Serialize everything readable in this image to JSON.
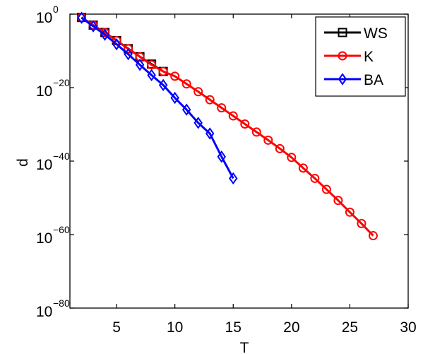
{
  "chart_data": {
    "type": "line",
    "xlabel": "T",
    "ylabel": "d",
    "xlim": [
      1,
      30
    ],
    "ylim_log10": [
      -80,
      0
    ],
    "yscale": "log",
    "xticks": [
      5,
      10,
      15,
      20,
      25,
      30
    ],
    "yticks": [
      {
        "base": "10",
        "exp": "0",
        "log10": 0
      },
      {
        "base": "10",
        "exp": "−20",
        "log10": -20
      },
      {
        "base": "10",
        "exp": "−40",
        "log10": -40
      },
      {
        "base": "10",
        "exp": "−60",
        "log10": -60
      },
      {
        "base": "10",
        "exp": "−80",
        "log10": -80
      }
    ],
    "legend_position": "top-right",
    "grid": false,
    "series": [
      {
        "name": "WS",
        "color": "#000000",
        "marker": "square",
        "x": [
          2,
          3,
          4,
          5,
          6,
          7,
          8,
          9
        ],
        "log10_y": [
          -0.9,
          -3.0,
          -5.0,
          -7.2,
          -9.4,
          -11.6,
          -13.6,
          -15.6
        ]
      },
      {
        "name": "K",
        "color": "#ff0000",
        "marker": "circle",
        "x": [
          2,
          3,
          4,
          5,
          6,
          7,
          8,
          9,
          10,
          11,
          12,
          13,
          14,
          15,
          16,
          17,
          18,
          19,
          20,
          21,
          22,
          23,
          24,
          25,
          26,
          27
        ],
        "log10_y": [
          -0.9,
          -3.0,
          -5.0,
          -7.2,
          -9.4,
          -11.6,
          -13.8,
          -15.6,
          -16.9,
          -19.0,
          -21.1,
          -23.3,
          -25.5,
          -27.7,
          -29.9,
          -32.1,
          -34.3,
          -36.6,
          -39.0,
          -41.9,
          -44.7,
          -47.7,
          -50.7,
          -53.9,
          -57.0,
          -60.3
        ]
      },
      {
        "name": "BA",
        "color": "#0000ff",
        "marker": "diamond",
        "x": [
          2,
          3,
          4,
          5,
          6,
          7,
          8,
          9,
          10,
          11,
          12,
          13,
          14,
          15
        ],
        "log10_y": [
          -1.0,
          -3.3,
          -5.6,
          -8.2,
          -10.9,
          -13.8,
          -16.6,
          -19.3,
          -22.8,
          -26.0,
          -29.6,
          -32.5,
          -38.8,
          -44.7
        ]
      }
    ]
  }
}
